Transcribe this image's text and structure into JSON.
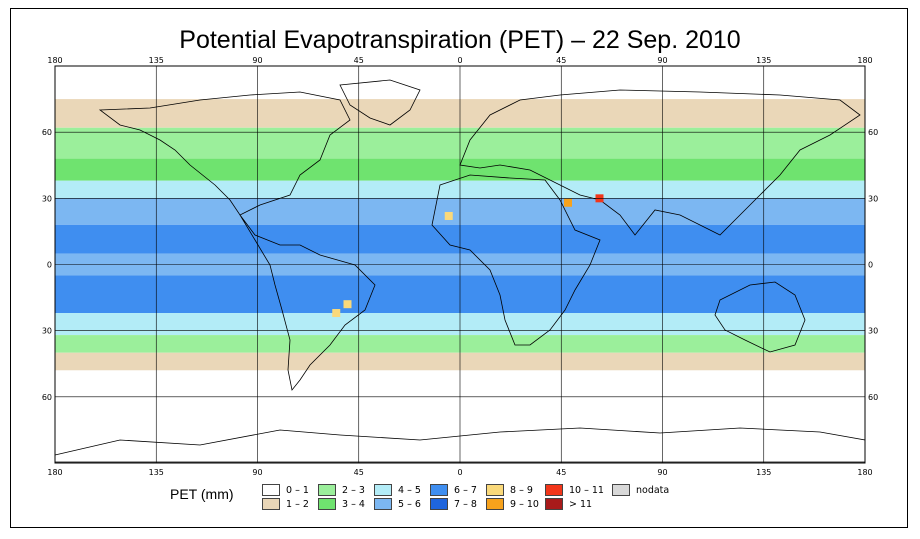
{
  "title": "Potential Evapotranspiration (PET) – 22 Sep. 2010",
  "legend": {
    "title": "PET (mm)",
    "items": [
      {
        "label": "0 – 1",
        "color": "#ffffff"
      },
      {
        "label": "1 – 2",
        "color": "#ead7b8"
      },
      {
        "label": "2 – 3",
        "color": "#9bef9b"
      },
      {
        "label": "3 – 4",
        "color": "#6fe36f"
      },
      {
        "label": "4 – 5",
        "color": "#b3ecf7"
      },
      {
        "label": "5 – 6",
        "color": "#7cb7f2"
      },
      {
        "label": "6 – 7",
        "color": "#3f8ef0"
      },
      {
        "label": "7 – 8",
        "color": "#1f65de"
      },
      {
        "label": "8 – 9",
        "color": "#fad97a"
      },
      {
        "label": "9 – 10",
        "color": "#f7a21c"
      },
      {
        "label": "10 – 11",
        "color": "#f2361a"
      },
      {
        "label": "> 11",
        "color": "#a81a1a"
      },
      {
        "label": "nodata",
        "color": "#d8d8d8"
      }
    ]
  },
  "axes": {
    "lon_ticks": [
      "180",
      "135",
      "90",
      "45",
      "0",
      "45",
      "90",
      "135",
      "180"
    ],
    "lat_ticks": [
      "60",
      "30",
      "0",
      "30",
      "60"
    ]
  },
  "bands": [
    {
      "name": "arctic-cold",
      "lat_from": 90,
      "lat_to": 75,
      "color": "#ffffff"
    },
    {
      "name": "north-cool",
      "lat_from": 75,
      "lat_to": 62,
      "color": "#ead7b8"
    },
    {
      "name": "north-mid",
      "lat_from": 62,
      "lat_to": 48,
      "color": "#9bef9b"
    },
    {
      "name": "north-warm",
      "lat_from": 48,
      "lat_to": 38,
      "color": "#6fe36f"
    },
    {
      "name": "north-subtropic",
      "lat_from": 38,
      "lat_to": 30,
      "color": "#b3ecf7"
    },
    {
      "name": "north-tropic",
      "lat_from": 30,
      "lat_to": 18,
      "color": "#7cb7f2"
    },
    {
      "name": "equator-high",
      "lat_from": 18,
      "lat_to": 5,
      "color": "#3f8ef0"
    },
    {
      "name": "equator",
      "lat_from": 5,
      "lat_to": -5,
      "color": "#7cb7f2"
    },
    {
      "name": "south-tropic",
      "lat_from": -5,
      "lat_to": -22,
      "color": "#3f8ef0"
    },
    {
      "name": "south-subtropic",
      "lat_from": -22,
      "lat_to": -32,
      "color": "#b3ecf7"
    },
    {
      "name": "south-warm",
      "lat_from": -32,
      "lat_to": -40,
      "color": "#9bef9b"
    },
    {
      "name": "south-cool",
      "lat_from": -40,
      "lat_to": -48,
      "color": "#ead7b8"
    },
    {
      "name": "south-cold",
      "lat_from": -48,
      "lat_to": -90,
      "color": "#ffffff"
    }
  ],
  "hotspots": [
    {
      "name": "brazil-hotspot",
      "lon": -50,
      "lat": -18,
      "color": "#fad97a"
    },
    {
      "name": "brazil-hotspot-2",
      "lon": -55,
      "lat": -22,
      "color": "#fad97a"
    },
    {
      "name": "sahel-hotspot",
      "lon": -5,
      "lat": 22,
      "color": "#fad97a"
    },
    {
      "name": "iran-hotspot",
      "lon": 62,
      "lat": 30,
      "color": "#f2361a"
    },
    {
      "name": "arabia-hotspot",
      "lon": 48,
      "lat": 28,
      "color": "#f7a21c"
    }
  ]
}
